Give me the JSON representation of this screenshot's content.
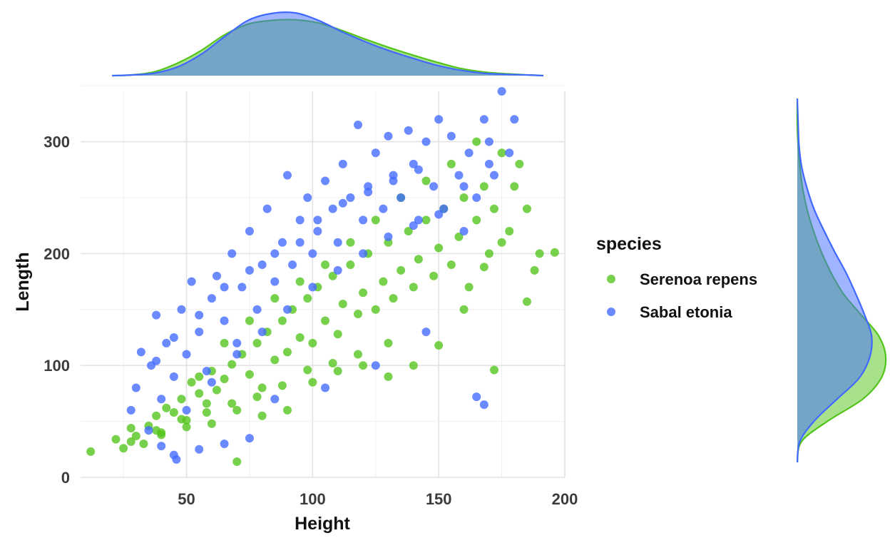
{
  "chart_data": {
    "type": "scatter",
    "subtype": "scatter with marginal density plots",
    "xlabel": "Height",
    "ylabel": "Length",
    "xlim": [
      8,
      200
    ],
    "ylim": [
      0,
      345
    ],
    "x_ticks": [
      "50",
      "100",
      "150",
      "200"
    ],
    "y_ticks": [
      "0",
      "100",
      "200",
      "300"
    ],
    "x_tick_values": [
      50,
      100,
      150,
      200
    ],
    "y_tick_values": [
      0,
      100,
      200,
      300
    ],
    "grid": true,
    "legend": {
      "title": "species",
      "placement": "right",
      "entries": [
        "Serenoa repens",
        "Sabal etonia"
      ]
    },
    "series": [
      {
        "name": "Serenoa repens",
        "color": "#52C41A",
        "points": [
          [
            12,
            23
          ],
          [
            22,
            34
          ],
          [
            25,
            26
          ],
          [
            28,
            44
          ],
          [
            30,
            37
          ],
          [
            35,
            46
          ],
          [
            38,
            55
          ],
          [
            40,
            40
          ],
          [
            42,
            62
          ],
          [
            45,
            58
          ],
          [
            48,
            70
          ],
          [
            50,
            51
          ],
          [
            52,
            85
          ],
          [
            55,
            75
          ],
          [
            58,
            66
          ],
          [
            60,
            95
          ],
          [
            62,
            78
          ],
          [
            65,
            88
          ],
          [
            68,
            101
          ],
          [
            70,
            60
          ],
          [
            72,
            110
          ],
          [
            75,
            92
          ],
          [
            78,
            120
          ],
          [
            80,
            80
          ],
          [
            82,
            130
          ],
          [
            85,
            105
          ],
          [
            88,
            140
          ],
          [
            90,
            112
          ],
          [
            92,
            150
          ],
          [
            95,
            125
          ],
          [
            98,
            160
          ],
          [
            100,
            120
          ],
          [
            102,
            170
          ],
          [
            105,
            140
          ],
          [
            108,
            180
          ],
          [
            110,
            128
          ],
          [
            112,
            155
          ],
          [
            115,
            190
          ],
          [
            118,
            146
          ],
          [
            120,
            165
          ],
          [
            122,
            200
          ],
          [
            125,
            150
          ],
          [
            128,
            175
          ],
          [
            130,
            210
          ],
          [
            132,
            160
          ],
          [
            135,
            185
          ],
          [
            138,
            220
          ],
          [
            140,
            170
          ],
          [
            142,
            195
          ],
          [
            145,
            230
          ],
          [
            148,
            180
          ],
          [
            150,
            205
          ],
          [
            152,
            240
          ],
          [
            155,
            190
          ],
          [
            158,
            215
          ],
          [
            160,
            250
          ],
          [
            162,
            170
          ],
          [
            165,
            230
          ],
          [
            168,
            260
          ],
          [
            170,
            200
          ],
          [
            172,
            240
          ],
          [
            175,
            290
          ],
          [
            178,
            220
          ],
          [
            180,
            260
          ],
          [
            182,
            280
          ],
          [
            185,
            240
          ],
          [
            188,
            185
          ],
          [
            190,
            200
          ],
          [
            196,
            201
          ],
          [
            185,
            157
          ],
          [
            175,
            210
          ],
          [
            168,
            188
          ],
          [
            160,
            150
          ],
          [
            150,
            118
          ],
          [
            140,
            100
          ],
          [
            130,
            90
          ],
          [
            120,
            100
          ],
          [
            110,
            95
          ],
          [
            100,
            85
          ],
          [
            90,
            60
          ],
          [
            80,
            55
          ],
          [
            70,
            14
          ],
          [
            60,
            48
          ],
          [
            50,
            45
          ],
          [
            40,
            38
          ],
          [
            33,
            30
          ],
          [
            55,
            90
          ],
          [
            65,
            120
          ],
          [
            75,
            140
          ],
          [
            85,
            160
          ],
          [
            95,
            175
          ],
          [
            105,
            190
          ],
          [
            115,
            210
          ],
          [
            125,
            230
          ],
          [
            135,
            250
          ],
          [
            145,
            265
          ],
          [
            155,
            280
          ],
          [
            165,
            300
          ],
          [
            172,
            96
          ],
          [
            130,
            120
          ],
          [
            118,
            110
          ],
          [
            108,
            102
          ],
          [
            98,
            96
          ],
          [
            88,
            82
          ],
          [
            78,
            72
          ],
          [
            68,
            66
          ],
          [
            58,
            58
          ],
          [
            48,
            52
          ],
          [
            38,
            42
          ],
          [
            28,
            32
          ]
        ]
      },
      {
        "name": "Sabal etonia",
        "color": "#4169FF",
        "points": [
          [
            28,
            60
          ],
          [
            30,
            80
          ],
          [
            32,
            112
          ],
          [
            35,
            42
          ],
          [
            36,
            100
          ],
          [
            38,
            145
          ],
          [
            40,
            70
          ],
          [
            42,
            120
          ],
          [
            45,
            90
          ],
          [
            46,
            16
          ],
          [
            48,
            150
          ],
          [
            50,
            110
          ],
          [
            52,
            175
          ],
          [
            55,
            130
          ],
          [
            58,
            95
          ],
          [
            60,
            160
          ],
          [
            62,
            180
          ],
          [
            65,
            140
          ],
          [
            68,
            200
          ],
          [
            70,
            120
          ],
          [
            72,
            170
          ],
          [
            75,
            220
          ],
          [
            78,
            150
          ],
          [
            80,
            190
          ],
          [
            82,
            240
          ],
          [
            85,
            175
          ],
          [
            88,
            210
          ],
          [
            90,
            270
          ],
          [
            92,
            190
          ],
          [
            95,
            230
          ],
          [
            98,
            250
          ],
          [
            100,
            200
          ],
          [
            102,
            220
          ],
          [
            105,
            265
          ],
          [
            108,
            240
          ],
          [
            110,
            210
          ],
          [
            112,
            280
          ],
          [
            115,
            250
          ],
          [
            118,
            315
          ],
          [
            120,
            230
          ],
          [
            122,
            260
          ],
          [
            125,
            290
          ],
          [
            128,
            240
          ],
          [
            130,
            305
          ],
          [
            132,
            270
          ],
          [
            135,
            250
          ],
          [
            138,
            310
          ],
          [
            140,
            280
          ],
          [
            142,
            230
          ],
          [
            145,
            300
          ],
          [
            148,
            260
          ],
          [
            150,
            320
          ],
          [
            152,
            240
          ],
          [
            155,
            305
          ],
          [
            158,
            270
          ],
          [
            160,
            220
          ],
          [
            162,
            290
          ],
          [
            165,
            250
          ],
          [
            168,
            320
          ],
          [
            170,
            300
          ],
          [
            172,
            270
          ],
          [
            175,
            345
          ],
          [
            178,
            290
          ],
          [
            180,
            320
          ],
          [
            168,
            65
          ],
          [
            165,
            72
          ],
          [
            145,
            130
          ],
          [
            125,
            100
          ],
          [
            105,
            80
          ],
          [
            85,
            70
          ],
          [
            75,
            35
          ],
          [
            65,
            30
          ],
          [
            55,
            25
          ],
          [
            45,
            20
          ],
          [
            40,
            28
          ],
          [
            50,
            60
          ],
          [
            60,
            85
          ],
          [
            70,
            110
          ],
          [
            80,
            130
          ],
          [
            90,
            150
          ],
          [
            100,
            170
          ],
          [
            110,
            185
          ],
          [
            120,
            200
          ],
          [
            130,
            215
          ],
          [
            140,
            225
          ],
          [
            150,
            235
          ],
          [
            160,
            260
          ],
          [
            170,
            280
          ],
          [
            95,
            210
          ],
          [
            85,
            200
          ],
          [
            75,
            185
          ],
          [
            65,
            170
          ],
          [
            55,
            145
          ],
          [
            45,
            125
          ],
          [
            38,
            104
          ],
          [
            102,
            230
          ],
          [
            112,
            245
          ],
          [
            122,
            255
          ],
          [
            132,
            265
          ],
          [
            142,
            275
          ]
        ]
      }
    ],
    "marginal_x_density": {
      "x": [
        12,
        20,
        30,
        40,
        50,
        60,
        70,
        80,
        90,
        100,
        110,
        120,
        130,
        140,
        150,
        160,
        170,
        180,
        190,
        196
      ],
      "Serenoa repens": [
        0.0,
        0.01,
        0.06,
        0.2,
        0.4,
        0.65,
        0.82,
        0.88,
        0.89,
        0.84,
        0.72,
        0.58,
        0.45,
        0.33,
        0.22,
        0.12,
        0.06,
        0.03,
        0.01,
        0.0
      ],
      "Sabal etonia": [
        0.0,
        0.01,
        0.04,
        0.14,
        0.34,
        0.62,
        0.88,
        0.99,
        1.0,
        0.88,
        0.7,
        0.54,
        0.4,
        0.28,
        0.17,
        0.09,
        0.04,
        0.02,
        0.01,
        0.0
      ]
    },
    "marginal_y_density": {
      "y": [
        0,
        20,
        40,
        60,
        80,
        100,
        120,
        140,
        160,
        180,
        200,
        220,
        240,
        260,
        280,
        300,
        320,
        345
      ],
      "Serenoa repens": [
        0.0,
        0.05,
        0.36,
        0.74,
        0.95,
        1.0,
        0.92,
        0.72,
        0.52,
        0.38,
        0.27,
        0.18,
        0.11,
        0.06,
        0.03,
        0.01,
        0.0,
        0.0
      ],
      "Sabal etonia": [
        0.0,
        0.03,
        0.2,
        0.45,
        0.7,
        0.82,
        0.84,
        0.76,
        0.66,
        0.55,
        0.42,
        0.3,
        0.19,
        0.11,
        0.05,
        0.02,
        0.01,
        0.0
      ]
    }
  }
}
